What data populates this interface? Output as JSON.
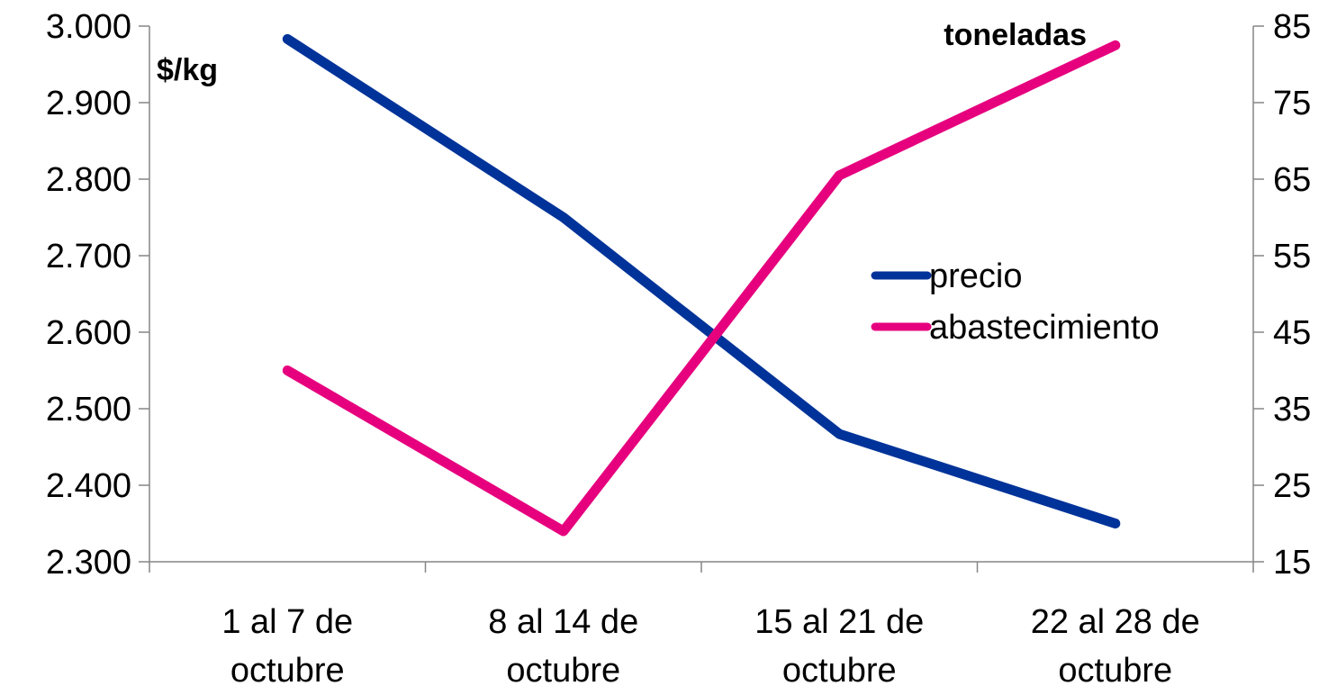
{
  "chart_data": {
    "type": "line",
    "categories": [
      "1 al 7 de octubre",
      "8 al 14 de octubre",
      "15 al 21 de octubre",
      "22 al 28 de octubre"
    ],
    "category_lines": [
      [
        "1 al 7 de",
        "octubre"
      ],
      [
        "8 al 14 de",
        "octubre"
      ],
      [
        "15 al 21 de",
        "octubre"
      ],
      [
        "22 al 28 de",
        "octubre"
      ]
    ],
    "y_left": {
      "label": "$/kg",
      "min": 2300,
      "max": 3000,
      "ticks": [
        3000,
        2900,
        2800,
        2700,
        2600,
        2500,
        2400,
        2300
      ],
      "tick_labels": [
        "3.000",
        "2.900",
        "2.800",
        "2.700",
        "2.600",
        "2.500",
        "2.400",
        "2.300"
      ]
    },
    "y_right": {
      "label": "toneladas",
      "min": 15,
      "max": 85,
      "ticks": [
        85,
        75,
        65,
        55,
        45,
        35,
        25,
        15
      ],
      "tick_labels": [
        "85",
        "75",
        "65",
        "55",
        "45",
        "35",
        "25",
        "15"
      ]
    },
    "series": [
      {
        "name": "precio",
        "axis": "left",
        "color": "#003399",
        "values": [
          2983,
          2750,
          2467,
          2350
        ]
      },
      {
        "name": "abastecimiento",
        "axis": "right",
        "color": "#E6007E",
        "values": [
          40,
          19,
          65.5,
          82.5
        ]
      }
    ],
    "legend_position": "right-middle",
    "grid": false
  }
}
